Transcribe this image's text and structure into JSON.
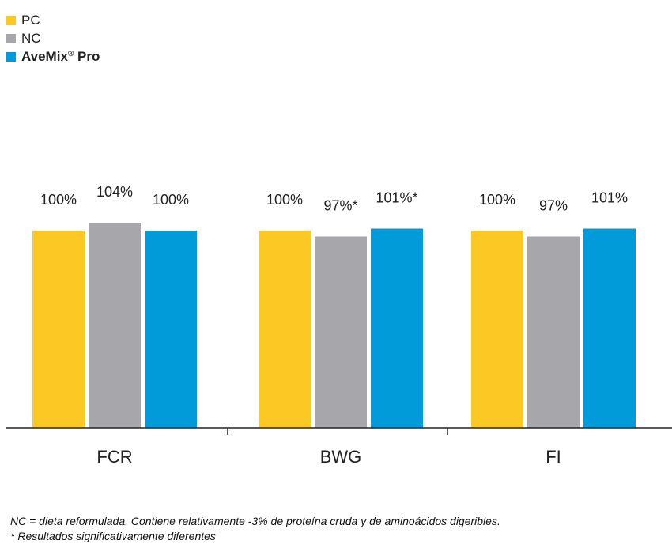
{
  "chart_data": {
    "type": "bar",
    "categories": [
      "FCR",
      "BWG",
      "FI"
    ],
    "series": [
      {
        "name": "PC",
        "color": "#FCC824",
        "values": [
          100,
          100,
          100
        ],
        "labels": [
          "100%",
          "100%",
          "100%"
        ]
      },
      {
        "name": "NC",
        "color": "#A7A6AA",
        "values": [
          104,
          97,
          97
        ],
        "labels": [
          "104%",
          "97%*",
          "97%"
        ]
      },
      {
        "name": "AveMix",
        "name_suffix": "® Pro",
        "color": "#019BDA",
        "values": [
          100,
          101,
          101
        ],
        "labels": [
          "100%",
          "101%*",
          "101%"
        ]
      }
    ],
    "ylim": [
      0,
      104
    ],
    "grid": false,
    "legend_position": "top-left",
    "title": "",
    "xlabel": "",
    "ylabel": ""
  },
  "footnotes": [
    "NC = dieta reformulada. Contiene relativamente -3% de proteína cruda y de aminoácidos digeribles.",
    "* Resultados significativamente diferentes"
  ]
}
